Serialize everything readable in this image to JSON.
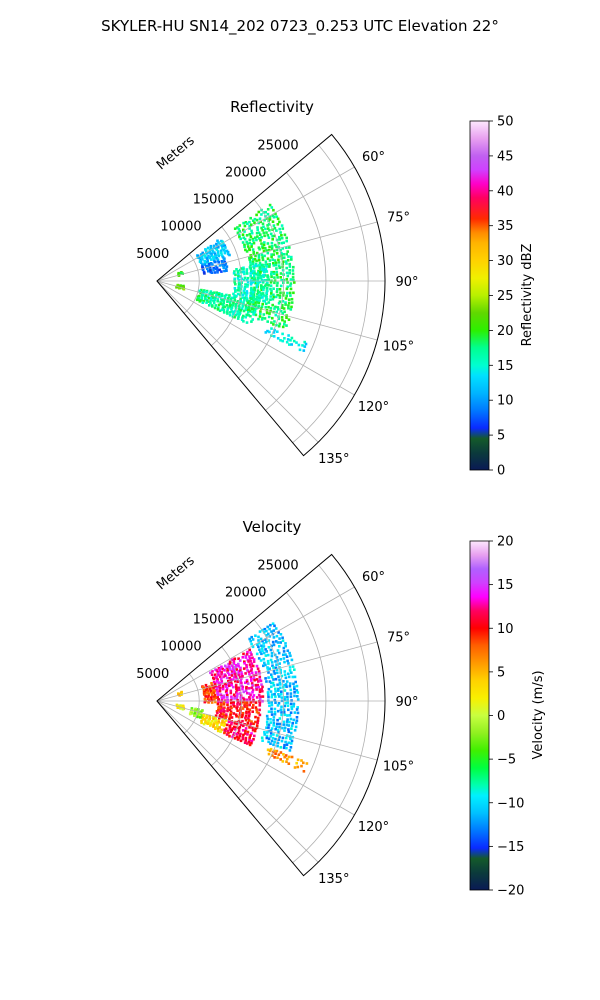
{
  "figure": {
    "suptitle": "SKYLER-HU  SN14_202  0723_0.253 UTC Elevation 22°"
  },
  "chart_data": [
    {
      "type": "heatmap",
      "subtype": "polar-sector-radar-ppi",
      "title": "Reflectivity",
      "radial_label": "Meters",
      "radial_ticks": [
        "5000",
        "10000",
        "15000",
        "20000",
        "25000"
      ],
      "radial_range": [
        0,
        27000
      ],
      "angle_range_deg": [
        50,
        140
      ],
      "angle_tick_values": [
        60,
        75,
        90,
        105,
        120,
        135
      ],
      "angle_tick_labels": [
        "60°",
        "75°",
        "90°",
        "105°",
        "120°",
        "135°"
      ],
      "grid": true,
      "colorbar": {
        "label": "Reflectivity dBZ",
        "range": [
          0,
          50
        ],
        "ticks": [
          "0",
          "5",
          "10",
          "15",
          "20",
          "25",
          "30",
          "35",
          "40",
          "45",
          "50"
        ]
      },
      "echo_regions": [
        {
          "az": [
            55,
            70
          ],
          "r": [
            5500,
            9000
          ],
          "value": 12
        },
        {
          "az": [
            70,
            80
          ],
          "r": [
            5500,
            8500
          ],
          "value": 8
        },
        {
          "az": [
            55,
            110
          ],
          "r": [
            11000,
            16000
          ],
          "value": 18
        },
        {
          "az": [
            80,
            100
          ],
          "r": [
            9000,
            13000
          ],
          "value": 16
        },
        {
          "az": [
            100,
            115
          ],
          "r": [
            5000,
            12000
          ],
          "value": 17
        },
        {
          "az": [
            66,
            73
          ],
          "r": [
            2500,
            3200
          ],
          "value": 20
        },
        {
          "az": [
            98,
            106
          ],
          "r": [
            2200,
            3000
          ],
          "value": 22
        },
        {
          "az": [
            112,
            116
          ],
          "r": [
            14000,
            19000
          ],
          "value": 14
        }
      ]
    },
    {
      "type": "heatmap",
      "subtype": "polar-sector-radar-ppi",
      "title": "Velocity",
      "radial_label": "Meters",
      "radial_ticks": [
        "5000",
        "10000",
        "15000",
        "20000",
        "25000"
      ],
      "radial_range": [
        0,
        27000
      ],
      "angle_range_deg": [
        50,
        140
      ],
      "angle_tick_values": [
        60,
        75,
        90,
        105,
        120,
        135
      ],
      "angle_tick_labels": [
        "60°",
        "75°",
        "90°",
        "105°",
        "120°",
        "135°"
      ],
      "grid": true,
      "colorbar": {
        "label": "Velocity (m/s)",
        "range": [
          -20,
          20
        ],
        "ticks": [
          "−20",
          "−15",
          "−10",
          "−5",
          "0",
          "5",
          "10",
          "15",
          "20"
        ]
      },
      "echo_regions": [
        {
          "az": [
            55,
            110
          ],
          "r": [
            13000,
            16500
          ],
          "value": -11
        },
        {
          "az": [
            60,
            90
          ],
          "r": [
            7000,
            12500
          ],
          "value": 13
        },
        {
          "az": [
            90,
            105
          ],
          "r": [
            7000,
            12000
          ],
          "value": 10
        },
        {
          "az": [
            70,
            90
          ],
          "r": [
            5500,
            7000
          ],
          "value": 9
        },
        {
          "az": [
            105,
            115
          ],
          "r": [
            5500,
            8500
          ],
          "value": 3
        },
        {
          "az": [
            105,
            115
          ],
          "r": [
            8500,
            12000
          ],
          "value": 11
        },
        {
          "az": [
            100,
            110
          ],
          "r": [
            4000,
            5500
          ],
          "value": -2
        },
        {
          "az": [
            66,
            73
          ],
          "r": [
            2500,
            3200
          ],
          "value": 4
        },
        {
          "az": [
            98,
            106
          ],
          "r": [
            2200,
            3000
          ],
          "value": 2
        },
        {
          "az": [
            112,
            116
          ],
          "r": [
            14000,
            19000
          ],
          "value": 6
        }
      ]
    }
  ]
}
